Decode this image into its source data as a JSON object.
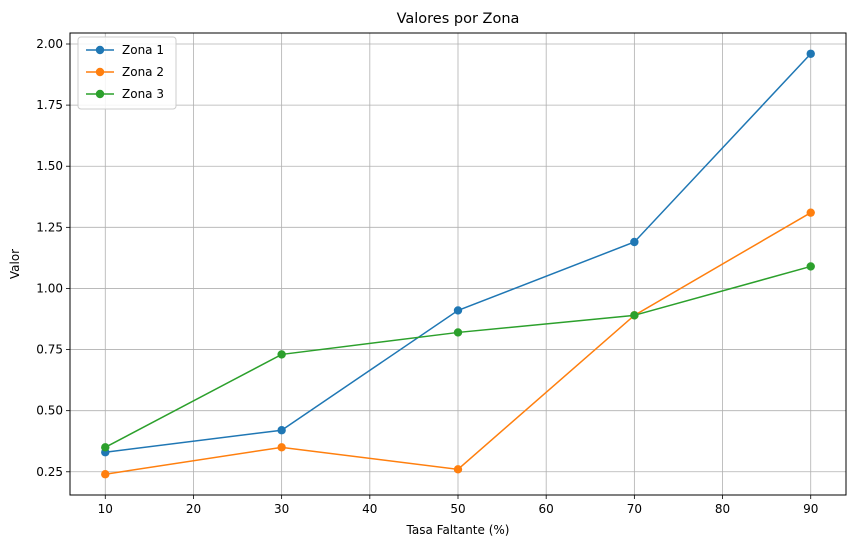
{
  "chart_data": {
    "type": "line",
    "title": "Valores por Zona",
    "xlabel": "Tasa Faltante (%)",
    "ylabel": "Valor",
    "x": [
      10,
      30,
      50,
      70,
      90
    ],
    "xlim": [
      6,
      94
    ],
    "ylim": [
      0.155,
      2.045
    ],
    "xticks": [
      10,
      20,
      30,
      40,
      50,
      60,
      70,
      80,
      90
    ],
    "yticks": [
      0.25,
      0.5,
      0.75,
      1.0,
      1.25,
      1.5,
      1.75,
      2.0
    ],
    "ytick_labels": [
      "0.25",
      "0.50",
      "0.75",
      "1.00",
      "1.25",
      "1.50",
      "1.75",
      "2.00"
    ],
    "grid": true,
    "legend_position": "top-left",
    "series": [
      {
        "name": "Zona 1",
        "color": "#1f77b4",
        "marker": "circle",
        "values": [
          0.33,
          0.42,
          0.91,
          1.19,
          1.96
        ]
      },
      {
        "name": "Zona 2",
        "color": "#ff7f0e",
        "marker": "circle",
        "values": [
          0.24,
          0.35,
          0.26,
          0.89,
          1.31
        ]
      },
      {
        "name": "Zona 3",
        "color": "#2ca02c",
        "marker": "circle",
        "values": [
          0.35,
          0.73,
          0.82,
          0.89,
          1.09
        ]
      }
    ]
  }
}
